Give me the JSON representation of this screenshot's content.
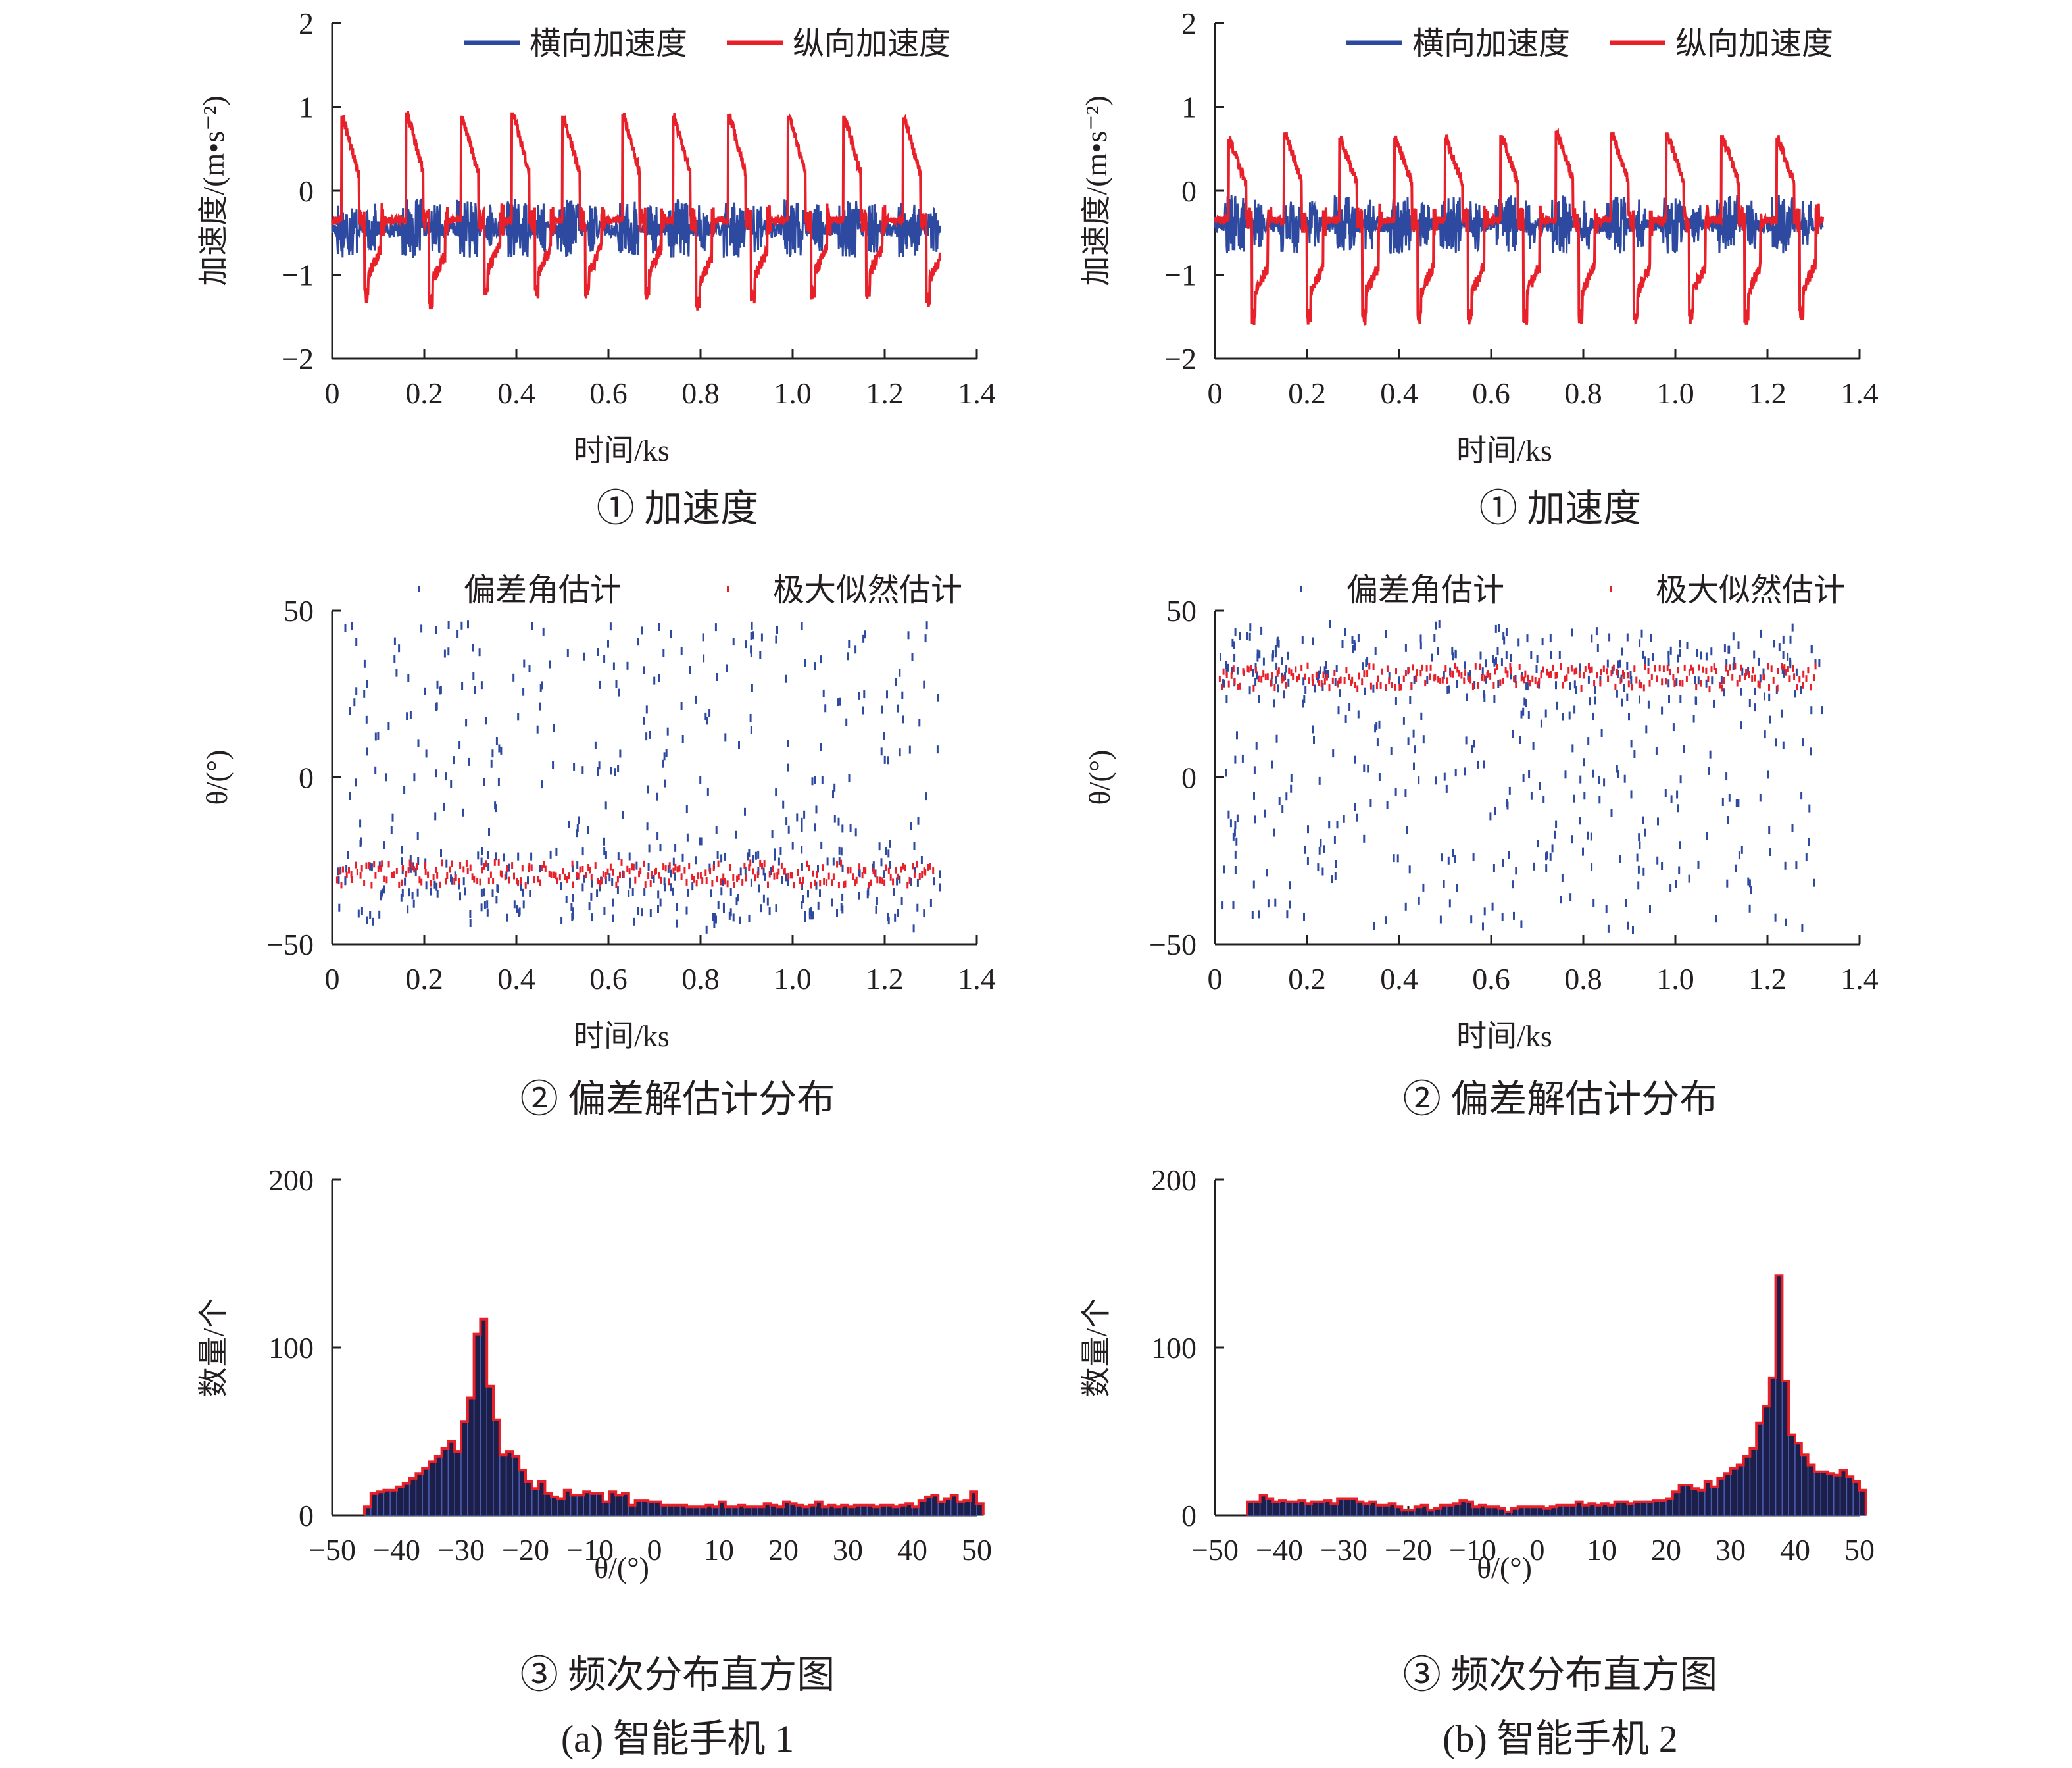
{
  "colors": {
    "blue": "#2e4aa0",
    "red": "#e8202a",
    "axis": "#231f20",
    "bar_fill": "#1c1f4a",
    "bar_edge": "#e8202a"
  },
  "columns": [
    {
      "id": "a",
      "subcaption": "(a) 智能手机 1"
    },
    {
      "id": "b",
      "subcaption": "(b) 智能手机 2"
    }
  ],
  "chart_data": [
    {
      "panel": "a-1",
      "type": "line",
      "caption": "① 加速度",
      "xlabel": "时间/ks",
      "ylabel": "加速度/(m•s⁻²)",
      "xlim": [
        0,
        1.4
      ],
      "ylim": [
        -2,
        2
      ],
      "xticks": [
        "0",
        "0.2",
        "0.4",
        "0.6",
        "0.8",
        "1.0",
        "1.2",
        "1.4"
      ],
      "yticks": [
        "2",
        "1",
        "0",
        "−1",
        "−2"
      ],
      "legend_position": "top",
      "series": [
        {
          "name": "横向加速度",
          "color": "#2e4aa0",
          "baseline": -0.45,
          "x_end": 1.32,
          "noise": 0.1
        },
        {
          "name": "纵向加速度",
          "color": "#e8202a",
          "baseline": -0.35,
          "x_end": 1.32,
          "events": [
            {
              "t": 0.02,
              "peak": 0.88,
              "trough": -1.35
            },
            {
              "t": 0.16,
              "peak": 0.92,
              "trough": -1.42
            },
            {
              "t": 0.28,
              "peak": 0.88,
              "trough": -1.25
            },
            {
              "t": 0.39,
              "peak": 0.92,
              "trough": -1.3
            },
            {
              "t": 0.5,
              "peak": 0.88,
              "trough": -1.3
            },
            {
              "t": 0.63,
              "peak": 0.9,
              "trough": -1.3
            },
            {
              "t": 0.74,
              "peak": 0.88,
              "trough": -1.45
            },
            {
              "t": 0.86,
              "peak": 0.9,
              "trough": -1.35
            },
            {
              "t": 0.99,
              "peak": 0.88,
              "trough": -1.3
            },
            {
              "t": 1.11,
              "peak": 0.88,
              "trough": -1.3
            },
            {
              "t": 1.24,
              "peak": 0.86,
              "trough": -1.4
            }
          ]
        }
      ]
    },
    {
      "panel": "b-1",
      "type": "line",
      "caption": "① 加速度",
      "xlabel": "时间/ks",
      "ylabel": "加速度/(m•s⁻²)",
      "xlim": [
        0,
        1.4
      ],
      "ylim": [
        -2,
        2
      ],
      "xticks": [
        "0",
        "0.2",
        "0.4",
        "0.6",
        "0.8",
        "1.0",
        "1.2",
        "1.4"
      ],
      "yticks": [
        "2",
        "1",
        "0",
        "−1",
        "−2"
      ],
      "legend_position": "top",
      "series": [
        {
          "name": "横向加速度",
          "color": "#2e4aa0",
          "baseline": -0.4,
          "x_end": 1.32,
          "noise": 0.09
        },
        {
          "name": "纵向加速度",
          "color": "#e8202a",
          "baseline": -0.35,
          "x_end": 1.32,
          "events": [
            {
              "t": 0.03,
              "peak": 0.6,
              "trough": -1.6
            },
            {
              "t": 0.15,
              "peak": 0.68,
              "trough": -1.6
            },
            {
              "t": 0.27,
              "peak": 0.62,
              "trough": -1.6
            },
            {
              "t": 0.39,
              "peak": 0.62,
              "trough": -1.6
            },
            {
              "t": 0.5,
              "peak": 0.62,
              "trough": -1.6
            },
            {
              "t": 0.62,
              "peak": 0.65,
              "trough": -1.6
            },
            {
              "t": 0.74,
              "peak": 0.7,
              "trough": -1.6
            },
            {
              "t": 0.86,
              "peak": 0.68,
              "trough": -1.6
            },
            {
              "t": 0.98,
              "peak": 0.68,
              "trough": -1.6
            },
            {
              "t": 1.1,
              "peak": 0.65,
              "trough": -1.6
            },
            {
              "t": 1.22,
              "peak": 0.62,
              "trough": -1.55
            }
          ]
        }
      ]
    },
    {
      "panel": "a-2",
      "type": "scatter",
      "caption": "② 偏差解估计分布",
      "xlabel": "时间/ks",
      "ylabel": "θ/(°)",
      "xlim": [
        0,
        1.4
      ],
      "ylim": [
        -50,
        50
      ],
      "xticks": [
        "0",
        "0.2",
        "0.4",
        "0.6",
        "0.8",
        "1.0",
        "1.2",
        "1.4"
      ],
      "yticks": [
        "50",
        "0",
        "−50"
      ],
      "legend_position": "top",
      "series": [
        {
          "name": "偏差角估计",
          "color": "#2e4aa0",
          "x_end": 1.32,
          "count": 520,
          "range": [
            -46,
            46
          ],
          "cluster_center": -32,
          "cluster_fraction": 0.3
        },
        {
          "name": "极大似然估计",
          "color": "#e8202a",
          "x_end": 1.31,
          "count": 260,
          "center": -29,
          "spread": 3.5
        }
      ]
    },
    {
      "panel": "b-2",
      "type": "scatter",
      "caption": "② 偏差解估计分布",
      "xlabel": "时间/ks",
      "ylabel": "θ/(°)",
      "xlim": [
        0,
        1.4
      ],
      "ylim": [
        -50,
        50
      ],
      "xticks": [
        "0",
        "0.2",
        "0.4",
        "0.6",
        "0.8",
        "1.0",
        "1.2",
        "1.4"
      ],
      "yticks": [
        "50",
        "0",
        "−50"
      ],
      "legend_position": "top",
      "series": [
        {
          "name": "偏差角估计",
          "color": "#2e4aa0",
          "x_end": 1.32,
          "count": 520,
          "range": [
            -46,
            46
          ],
          "cluster_center": 33,
          "cluster_fraction": 0.35
        },
        {
          "name": "极大似然估计",
          "color": "#e8202a",
          "x_end": 1.31,
          "count": 260,
          "center": 30,
          "spread": 3.5
        }
      ]
    },
    {
      "panel": "a-3",
      "type": "bar",
      "caption": "③ 频次分布直方图",
      "xlabel": "θ/(°)",
      "ylabel": "数量/个",
      "xlim": [
        -50,
        50
      ],
      "ylim": [
        0,
        200
      ],
      "xticks": [
        "−50",
        "−40",
        "−30",
        "−20",
        "−10",
        "0",
        "10",
        "20",
        "30",
        "40",
        "50"
      ],
      "yticks": [
        "200",
        "100",
        "0"
      ],
      "bin_start": -45,
      "bin_width": 1,
      "values": [
        5,
        13,
        14,
        15,
        15,
        17,
        19,
        22,
        25,
        28,
        32,
        35,
        40,
        44,
        38,
        56,
        70,
        108,
        117,
        77,
        57,
        36,
        38,
        35,
        27,
        20,
        16,
        20,
        13,
        11,
        10,
        15,
        12,
        12,
        14,
        13,
        13,
        8,
        14,
        12,
        13,
        6,
        9,
        9,
        8,
        8,
        6,
        6,
        6,
        6,
        5,
        5,
        5,
        6,
        5,
        8,
        5,
        5,
        6,
        5,
        5,
        5,
        7,
        6,
        5,
        8,
        7,
        6,
        5,
        6,
        8,
        5,
        6,
        5,
        6,
        5,
        6,
        6,
        6,
        5,
        6,
        6,
        5,
        6,
        7,
        5,
        9,
        11,
        12,
        8,
        10,
        12,
        8,
        9,
        14,
        7
      ]
    },
    {
      "panel": "b-3",
      "type": "bar",
      "caption": "③ 频次分布直方图",
      "xlabel": "θ/(°)",
      "ylabel": "数量/个",
      "xlim": [
        -50,
        50
      ],
      "ylim": [
        0,
        200
      ],
      "xticks": [
        "−50",
        "−40",
        "−30",
        "−20",
        "−10",
        "0",
        "10",
        "20",
        "30",
        "40",
        "50"
      ],
      "yticks": [
        "200",
        "100",
        "0"
      ],
      "bin_start": -45,
      "bin_width": 1,
      "values": [
        8,
        8,
        12,
        10,
        8,
        9,
        8,
        8,
        9,
        7,
        8,
        8,
        9,
        7,
        10,
        10,
        10,
        8,
        7,
        8,
        6,
        6,
        7,
        5,
        3,
        3,
        5,
        6,
        3,
        4,
        6,
        6,
        7,
        9,
        8,
        5,
        6,
        5,
        5,
        4,
        2,
        4,
        5,
        5,
        5,
        5,
        4,
        5,
        6,
        6,
        6,
        8,
        6,
        7,
        6,
        7,
        6,
        8,
        8,
        7,
        8,
        8,
        8,
        9,
        9,
        10,
        14,
        18,
        18,
        16,
        15,
        20,
        17,
        22,
        25,
        28,
        30,
        35,
        40,
        55,
        65,
        82,
        143,
        80,
        48,
        43,
        36,
        30,
        26,
        26,
        25,
        24,
        27,
        23,
        20,
        15
      ]
    }
  ]
}
